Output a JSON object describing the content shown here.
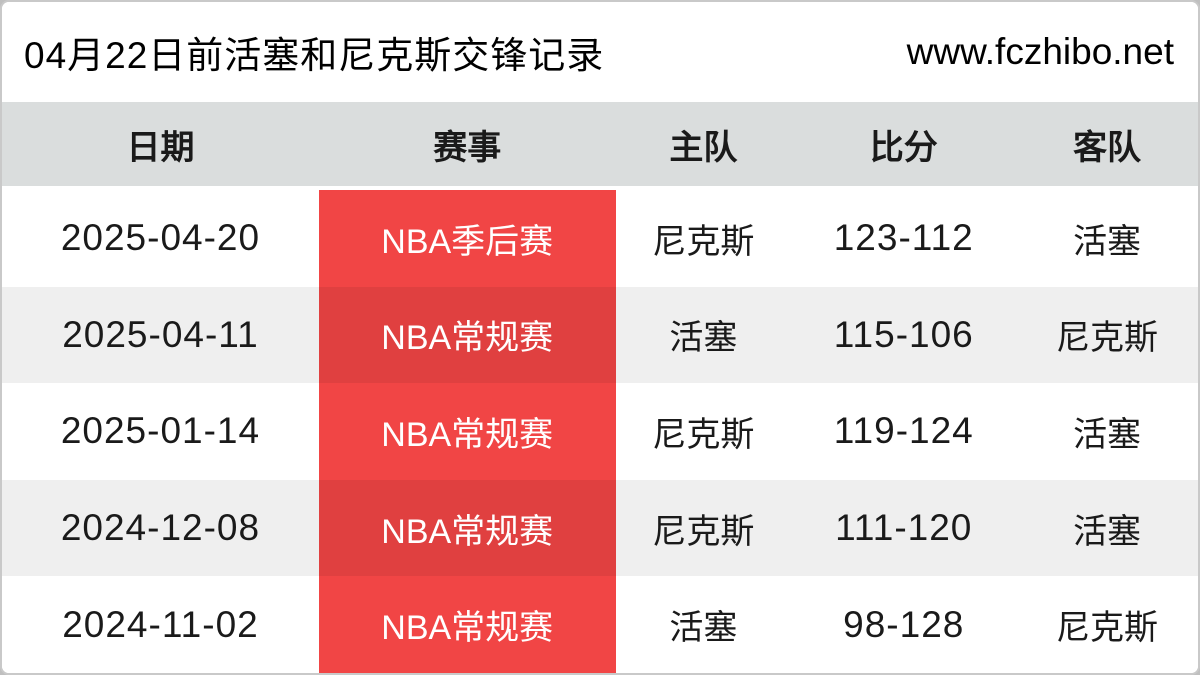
{
  "page": {
    "title": "04月22日前活塞和尼克斯交锋记录",
    "website": "www.fczhibo.net"
  },
  "colors": {
    "red-bright": "#f14545",
    "red-dark": "#e04040",
    "header-bg": "#dadddd",
    "row-alt": "#efefef",
    "frame": "#c9c9c9"
  },
  "table": {
    "headers": {
      "date": "日期",
      "event": "赛事",
      "home": "主队",
      "score": "比分",
      "away": "客队"
    },
    "rows": [
      {
        "date": "2025-04-20",
        "event": "NBA季后赛",
        "home": "尼克斯",
        "score": "123-112",
        "away": "活塞"
      },
      {
        "date": "2025-04-11",
        "event": "NBA常规赛",
        "home": "活塞",
        "score": "115-106",
        "away": "尼克斯"
      },
      {
        "date": "2025-01-14",
        "event": "NBA常规赛",
        "home": "尼克斯",
        "score": "119-124",
        "away": "活塞"
      },
      {
        "date": "2024-12-08",
        "event": "NBA常规赛",
        "home": "尼克斯",
        "score": "111-120",
        "away": "活塞"
      },
      {
        "date": "2024-11-02",
        "event": "NBA常规赛",
        "home": "活塞",
        "score": "98-128",
        "away": "尼克斯"
      }
    ]
  }
}
